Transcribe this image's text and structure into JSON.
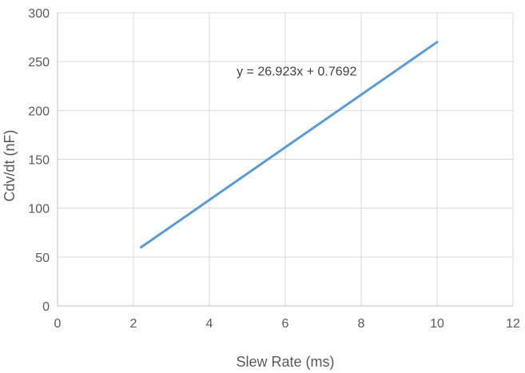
{
  "chart_data": {
    "type": "line",
    "title": "",
    "xlabel": "Slew Rate (ms)",
    "ylabel": "Cdv/dt (nF)",
    "xlim": [
      0,
      12
    ],
    "ylim": [
      0,
      300
    ],
    "xticks": [
      0,
      2,
      4,
      6,
      8,
      10,
      12
    ],
    "yticks": [
      0,
      50,
      100,
      150,
      200,
      250,
      300
    ],
    "grid": true,
    "legend": "none",
    "series": [
      {
        "x": [
          2.2,
          10
        ],
        "y": [
          60,
          270
        ],
        "color": "#5b9bd5"
      }
    ],
    "annotations": [
      {
        "text": "y = 26.923x + 0.7692",
        "x": 6.3,
        "y": 236
      }
    ],
    "colors": {
      "grid": "#d9d9d9",
      "axis": "#bfbfbf",
      "line": "#5b9bd5"
    }
  }
}
